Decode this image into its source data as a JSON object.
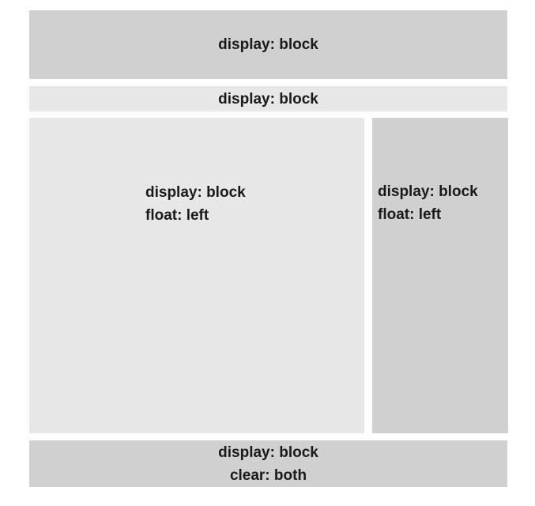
{
  "colors": {
    "dark_box": "#d0d0d0",
    "light_box": "#e7e7e7",
    "background": "#ffffff",
    "text": "#1a1a1a"
  },
  "blocks": {
    "header": {
      "lines": [
        "display: block"
      ]
    },
    "nav": {
      "lines": [
        "display: block"
      ]
    },
    "main": {
      "lines": [
        "display: block",
        "float: left"
      ]
    },
    "side": {
      "lines": [
        "display: block",
        "float: left"
      ]
    },
    "footer": {
      "lines": [
        "display: block",
        "clear: both"
      ]
    }
  }
}
